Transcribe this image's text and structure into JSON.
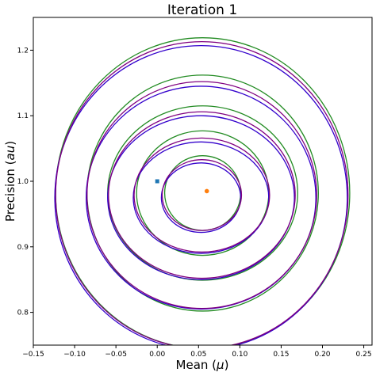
{
  "chart_data": {
    "type": "contour",
    "title": "Iteration 1",
    "xlabel": "Mean (μ)",
    "xlabel_prefix": "Mean (",
    "xlabel_symbol": "μ",
    "xlabel_suffix": ")",
    "ylabel_prefix": "Precision (",
    "ylabel_symbol": "au",
    "ylabel_suffix": ")",
    "xlim": [
      -0.15,
      0.26
    ],
    "ylim": [
      0.75,
      1.25
    ],
    "x_ticks": [
      -0.15,
      -0.1,
      -0.05,
      0.0,
      0.05,
      0.1,
      0.15,
      0.2,
      0.25
    ],
    "x_tick_labels": [
      "−0.15",
      "−0.10",
      "−0.05",
      "0.00",
      "0.05",
      "0.10",
      "0.15",
      "0.20",
      "0.25"
    ],
    "y_ticks": [
      0.8,
      0.9,
      1.0,
      1.1,
      1.2
    ],
    "y_tick_labels": [
      "0.8",
      "0.9",
      "1.0",
      "1.1",
      "1.2"
    ],
    "grid": false,
    "points": [
      {
        "name": "blue-marker",
        "shape": "square",
        "x": 0.0,
        "y": 1.0,
        "color": "#1f77b4"
      },
      {
        "name": "orange-marker",
        "shape": "circle",
        "x": 0.06,
        "y": 0.985,
        "color": "#ff7f0e"
      }
    ],
    "series": [
      {
        "color": "#228b22",
        "contours": [
          {
            "cx": 0.055,
            "cy": 0.982,
            "rx": 0.046,
            "ry": 0.057
          },
          {
            "cx": 0.055,
            "cy": 0.982,
            "rx": 0.08,
            "ry": 0.095
          },
          {
            "cx": 0.055,
            "cy": 0.982,
            "rx": 0.115,
            "ry": 0.133
          },
          {
            "cx": 0.055,
            "cy": 0.982,
            "rx": 0.14,
            "ry": 0.18
          },
          {
            "cx": 0.055,
            "cy": 0.982,
            "rx": 0.178,
            "ry": 0.237
          }
        ]
      },
      {
        "color": "#3300cc",
        "contours": [
          {
            "cx": 0.053,
            "cy": 0.975,
            "rx": 0.048,
            "ry": 0.053
          },
          {
            "cx": 0.053,
            "cy": 0.975,
            "rx": 0.082,
            "ry": 0.085
          },
          {
            "cx": 0.053,
            "cy": 0.975,
            "rx": 0.113,
            "ry": 0.125
          },
          {
            "cx": 0.053,
            "cy": 0.975,
            "rx": 0.139,
            "ry": 0.17
          },
          {
            "cx": 0.053,
            "cy": 0.975,
            "rx": 0.177,
            "ry": 0.232
          }
        ]
      },
      {
        "color": "#800080",
        "contours": [
          {
            "cx": 0.054,
            "cy": 0.979,
            "rx": 0.048,
            "ry": 0.054
          },
          {
            "cx": 0.054,
            "cy": 0.979,
            "rx": 0.082,
            "ry": 0.087
          },
          {
            "cx": 0.054,
            "cy": 0.979,
            "rx": 0.113,
            "ry": 0.127
          },
          {
            "cx": 0.054,
            "cy": 0.979,
            "rx": 0.139,
            "ry": 0.173
          },
          {
            "cx": 0.054,
            "cy": 0.979,
            "rx": 0.177,
            "ry": 0.234
          }
        ]
      }
    ]
  }
}
